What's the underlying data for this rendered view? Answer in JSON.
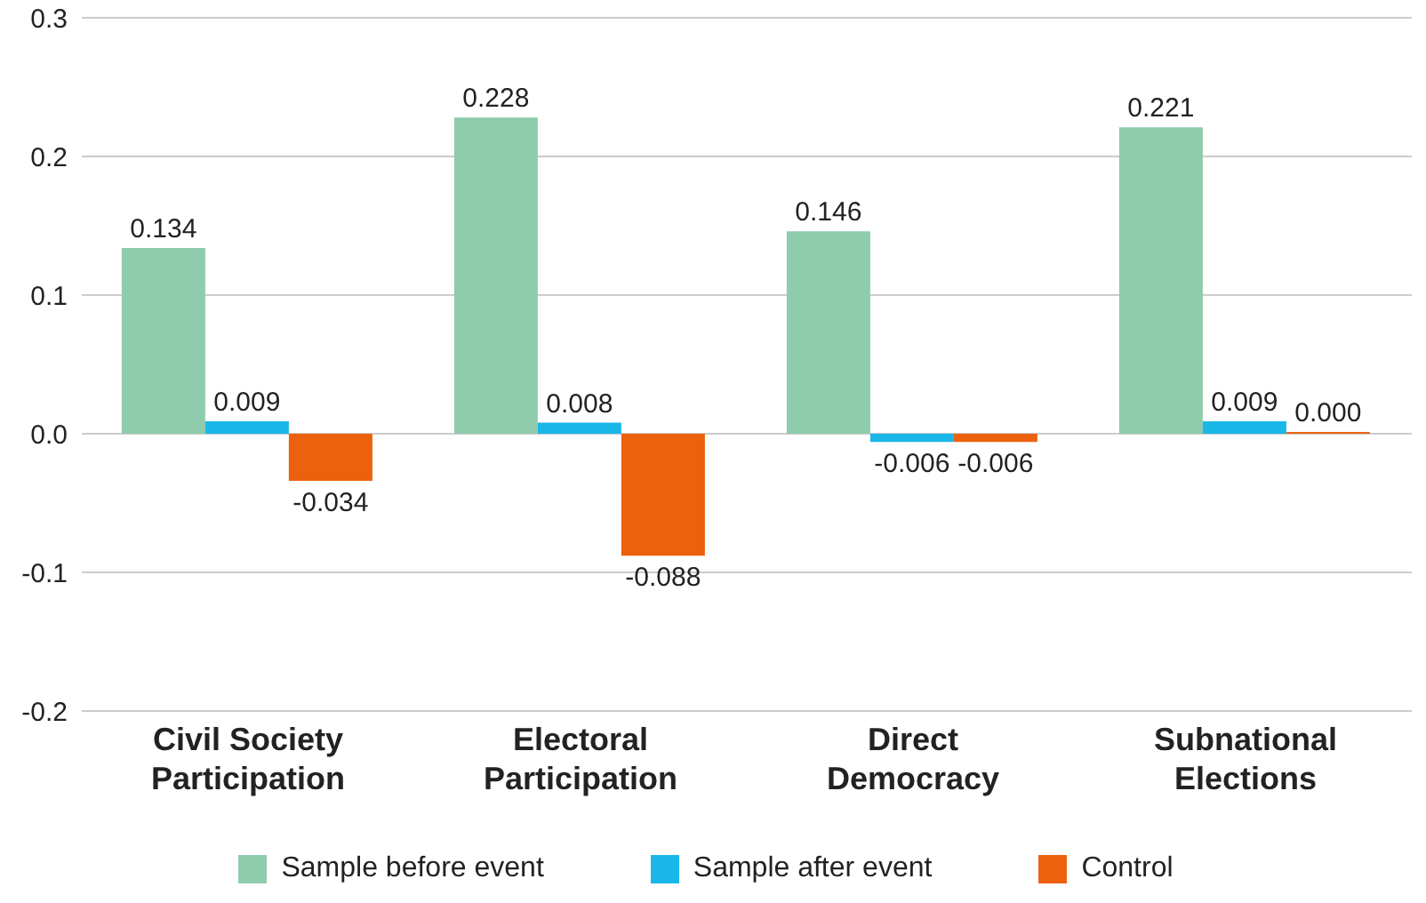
{
  "chart_data": {
    "type": "bar",
    "categories": [
      "Civil Society Participation",
      "Electoral Participation",
      "Direct Democracy",
      "Subnational Elections"
    ],
    "series": [
      {
        "name": "Sample before event",
        "color": "#8fcbad",
        "values": [
          0.134,
          0.228,
          0.146,
          0.221
        ],
        "value_labels": [
          "0.134",
          "0.228",
          "0.146",
          "0.221"
        ]
      },
      {
        "name": "Sample after event",
        "color": "#1ab7e8",
        "values": [
          0.009,
          0.008,
          -0.006,
          0.009
        ],
        "value_labels": [
          "0.009",
          "0.008",
          "-0.006",
          "0.009"
        ]
      },
      {
        "name": "Control",
        "color": "#ec610e",
        "values": [
          -0.034,
          -0.088,
          -0.006,
          0.0
        ],
        "value_labels": [
          "-0.034",
          "-0.088",
          "-0.006",
          "0.000"
        ]
      }
    ],
    "ylim": [
      -0.2,
      0.3
    ],
    "yticks": [
      -0.2,
      -0.1,
      {
        "value": 0,
        "label": "0.0"
      },
      0.1,
      0.2,
      0.3
    ],
    "grid": "y",
    "legend": "bottom"
  }
}
